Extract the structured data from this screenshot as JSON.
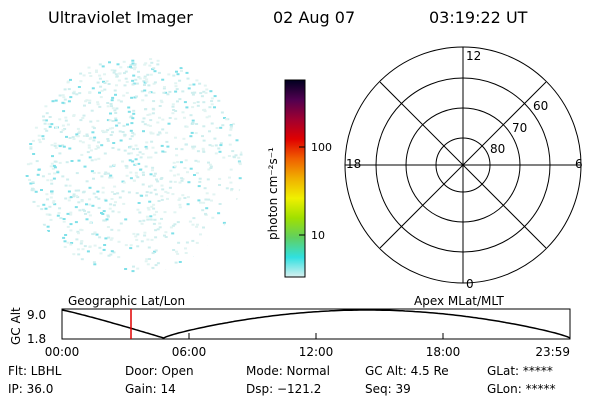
{
  "header": {
    "title": "Ultraviolet Imager",
    "date": "02 Aug 07",
    "time": "03:19:22 UT"
  },
  "colorbar": {
    "unit_label": "photon cm⁻²s⁻¹",
    "tick_100": "100",
    "tick_10": "10",
    "stops": [
      "#d8f0f0",
      "#30e0e0",
      "#60d060",
      "#a0e000",
      "#f0f000",
      "#f0b000",
      "#f06000",
      "#e00000",
      "#a00030",
      "#500050",
      "#000020"
    ]
  },
  "polar_plot": {
    "mlt_12": "12",
    "mlt_18": "18",
    "mlt_6": "6",
    "mlt_0": "0",
    "lat_60": "60",
    "lat_70": "70",
    "lat_80": "80"
  },
  "timeline": {
    "left_label": "Geographic Lat/Lon",
    "right_label": "Apex MLat/MLT",
    "axis_title": "GC Alt",
    "y_top": "9.0",
    "y_bottom": "1.8",
    "x_ticks": [
      "00:00",
      "06:00",
      "12:00",
      "18:00",
      "23:59"
    ],
    "marker_color": "#e00000"
  },
  "status": {
    "flt": "Flt: LBHL",
    "door": "Door: Open",
    "mode": "Mode: Normal",
    "gc_alt": "GC Alt: 4.5 Re",
    "glat": "GLat: *****",
    "ip": "IP: 36.0",
    "gain": "Gain: 14",
    "dsp": "Dsp: −121.2",
    "seq": "Seq: 39",
    "glon": "GLon: *****"
  }
}
